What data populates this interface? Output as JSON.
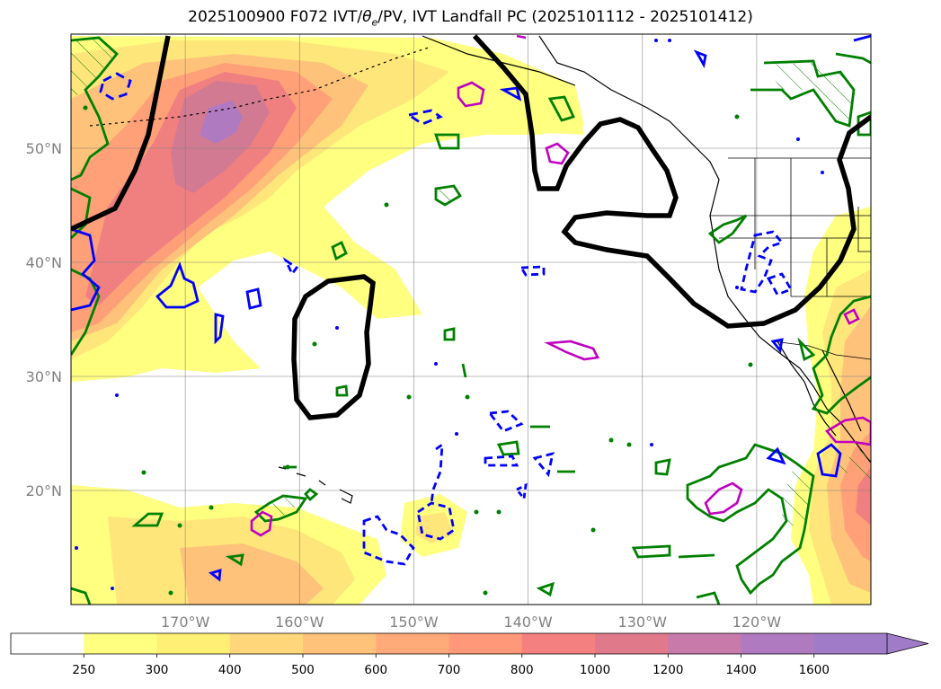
{
  "title": {
    "prefix": "2025100900 F072 IVT/",
    "theta": "θ",
    "theta_sub": "e",
    "suffix": "/PV, IVT Landfall PC (2025101112 - 2025101412)"
  },
  "map": {
    "lon_range": [
      -180,
      -110
    ],
    "lat_range": [
      10,
      60
    ],
    "gridlines": true,
    "lon_ticks": [
      {
        "lon": -170,
        "label": "170°W"
      },
      {
        "lon": -160,
        "label": "160°W"
      },
      {
        "lon": -150,
        "label": "150°W"
      },
      {
        "lon": -140,
        "label": "140°W"
      },
      {
        "lon": -130,
        "label": "130°W"
      },
      {
        "lon": -120,
        "label": "120°W"
      }
    ],
    "lat_ticks": [
      {
        "lat": 50,
        "label": "50°N"
      },
      {
        "lat": 40,
        "label": "40°N"
      },
      {
        "lat": 30,
        "label": "30°N"
      },
      {
        "lat": 20,
        "label": "20°N"
      }
    ]
  },
  "colorbar": {
    "levels": [
      "250",
      "300",
      "400",
      "500",
      "600",
      "700",
      "800",
      "1000",
      "1200",
      "1400",
      "1600"
    ],
    "colors": [
      "#ffffff",
      "#ffff80",
      "#fff075",
      "#ffd67a",
      "#ffc27a",
      "#ffaa78",
      "#ff9878",
      "#f58080",
      "#e07a8a",
      "#c87aaa",
      "#b07ac0",
      "#a07cc8"
    ],
    "extend": "max"
  },
  "contour_colors": {
    "ivt_pc": "#000000",
    "theta_e": "#008000",
    "pv_neg": "#0000ff",
    "pv_pos": "#c000c0"
  }
}
